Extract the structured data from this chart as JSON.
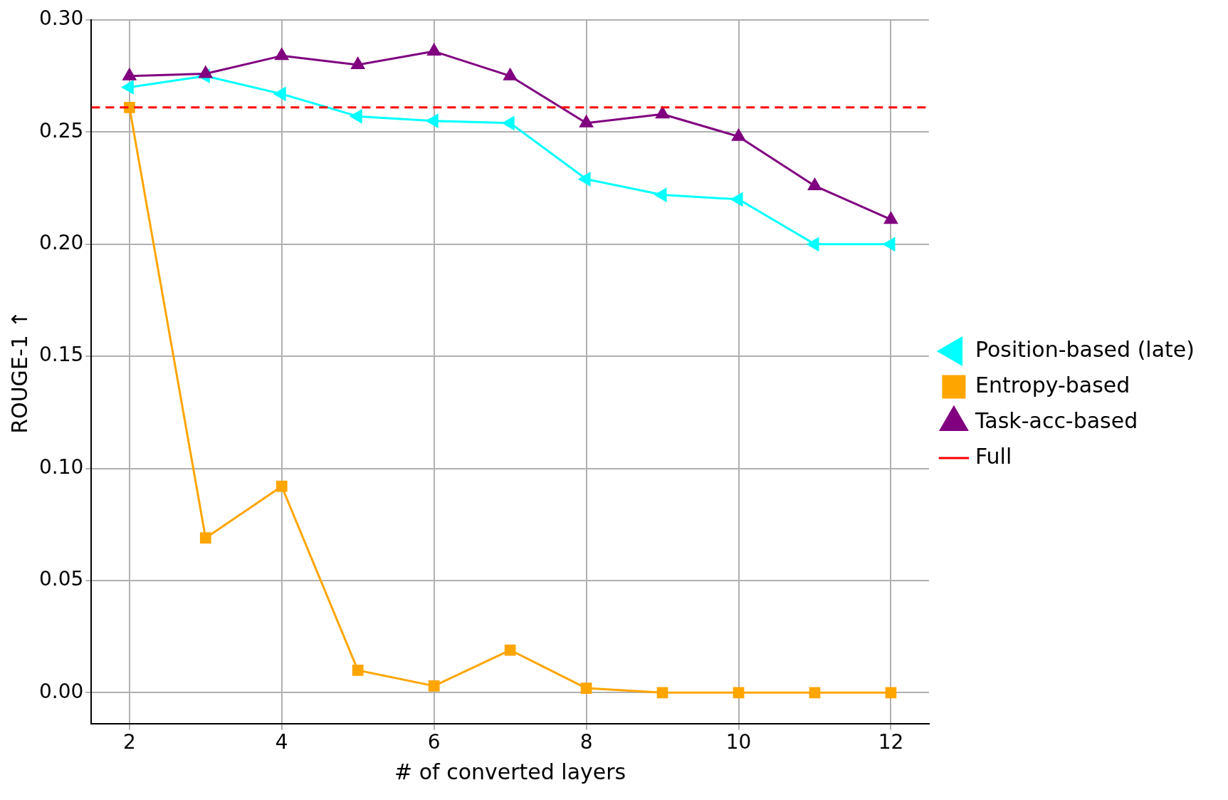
{
  "chart_data": {
    "type": "line",
    "xlabel": "# of converted layers",
    "ylabel": "ROUGE-1 ↑",
    "x": [
      2,
      3,
      4,
      5,
      6,
      7,
      8,
      9,
      10,
      11,
      12
    ],
    "series": [
      {
        "name": "Position-based (late)",
        "color": "#00ffff",
        "marker": "triangle-left",
        "values": [
          0.27,
          0.275,
          0.267,
          0.257,
          0.255,
          0.254,
          0.229,
          0.222,
          0.22,
          0.2,
          0.2
        ]
      },
      {
        "name": "Entropy-based",
        "color": "#ffa500",
        "marker": "square",
        "values": [
          0.261,
          0.069,
          0.092,
          0.01,
          0.003,
          0.019,
          0.002,
          0.0,
          0.0,
          0.0,
          0.0
        ]
      },
      {
        "name": "Task-acc-based",
        "color": "#800080",
        "marker": "triangle",
        "values": [
          0.275,
          0.276,
          0.284,
          0.28,
          0.286,
          0.275,
          0.254,
          0.258,
          0.248,
          0.226,
          0.211
        ]
      }
    ],
    "ref_lines": [
      {
        "axis": "y",
        "value": 0.261,
        "label": "Full",
        "color": "#ff0000",
        "line_style": "dashed"
      }
    ],
    "xlim": [
      1.5,
      12.5
    ],
    "xticks": [
      2,
      4,
      6,
      8,
      10,
      12
    ],
    "ylim": [
      -0.014,
      0.3
    ],
    "yticks": [
      {
        "value": 0,
        "label": "0.00"
      },
      {
        "value": 0.05,
        "label": "0.05"
      },
      {
        "value": 0.1,
        "label": "0.10"
      },
      {
        "value": 0.15,
        "label": "0.15"
      },
      {
        "value": 0.2,
        "label": "0.20"
      },
      {
        "value": 0.25,
        "label": "0.25"
      },
      {
        "value": 0.3,
        "label": "0.30"
      }
    ],
    "grid": true,
    "legend": "right",
    "line_style": "solid"
  }
}
